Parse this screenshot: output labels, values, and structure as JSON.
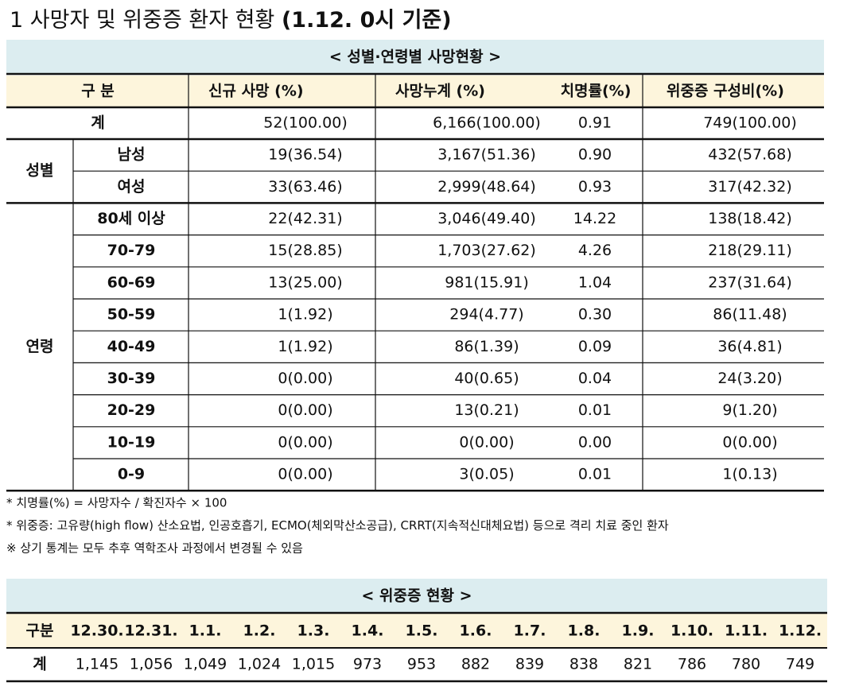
{
  "title": {
    "number": "1",
    "text": "사망자 및 위중증 환자 현황",
    "basis": "(1.12. 0시 기준)"
  },
  "table1": {
    "caption": "< 성별·연령별 사망현황 >",
    "header": [
      "구 분",
      "신규 사망   (%)",
      "사망누계   (%)",
      "치명률(%)",
      "위중증   구성비(%)"
    ],
    "total": {
      "label": "계",
      "cells": [
        "52(100.00)",
        "6,166(100.00)",
        "0.91",
        "749(100.00)"
      ]
    },
    "groups": [
      {
        "label": "성별",
        "rows": [
          {
            "label": "남성",
            "cells": [
              "19(36.54)",
              "3,167(51.36)",
              "0.90",
              "432(57.68)"
            ]
          },
          {
            "label": "여성",
            "cells": [
              "33(63.46)",
              "2,999(48.64)",
              "0.93",
              "317(42.32)"
            ]
          }
        ]
      },
      {
        "label": "연령",
        "rows": [
          {
            "label": "80세 이상",
            "cells": [
              "22(42.31)",
              "3,046(49.40)",
              "14.22",
              "138(18.42)"
            ]
          },
          {
            "label": "70-79",
            "cells": [
              "15(28.85)",
              "1,703(27.62)",
              "4.26",
              "218(29.11)"
            ]
          },
          {
            "label": "60-69",
            "cells": [
              "13(25.00)",
              "981(15.91)",
              "1.04",
              "237(31.64)"
            ]
          },
          {
            "label": "50-59",
            "cells": [
              "1(1.92)",
              "294(4.77)",
              "0.30",
              "86(11.48)"
            ]
          },
          {
            "label": "40-49",
            "cells": [
              "1(1.92)",
              "86(1.39)",
              "0.09",
              "36(4.81)"
            ]
          },
          {
            "label": "30-39",
            "cells": [
              "0(0.00)",
              "40(0.65)",
              "0.04",
              "24(3.20)"
            ]
          },
          {
            "label": "20-29",
            "cells": [
              "0(0.00)",
              "13(0.21)",
              "0.01",
              "9(1.20)"
            ]
          },
          {
            "label": "10-19",
            "cells": [
              "0(0.00)",
              "0(0.00)",
              "0.00",
              "0(0.00)"
            ]
          },
          {
            "label": "0-9",
            "cells": [
              "0(0.00)",
              "3(0.05)",
              "0.01",
              "1(0.13)"
            ]
          }
        ]
      }
    ]
  },
  "notes": [
    "* 치명률(%) = 사망자수 / 확진자수 × 100",
    "* 위중증: 고유량(high flow) 산소요법, 인공호흡기, ECMO(체외막산소공급), CRRT(지속적신대체요법) 등으로 격리 치료 중인 환자",
    "※ 상기 통계는 모두 추후 역학조사 과정에서 변경될 수 있음"
  ],
  "table2": {
    "caption": "< 위중증 현황 >",
    "header_label": "구분",
    "dates": [
      "12.30.",
      "12.31.",
      "1.1.",
      "1.2.",
      "1.3.",
      "1.4.",
      "1.5.",
      "1.6.",
      "1.7.",
      "1.8.",
      "1.9.",
      "1.10.",
      "1.11.",
      "1.12."
    ],
    "row_label": "계",
    "values": [
      "1,145",
      "1,056",
      "1,049",
      "1,024",
      "1,015",
      "973",
      "953",
      "882",
      "839",
      "838",
      "821",
      "786",
      "780",
      "749"
    ]
  }
}
